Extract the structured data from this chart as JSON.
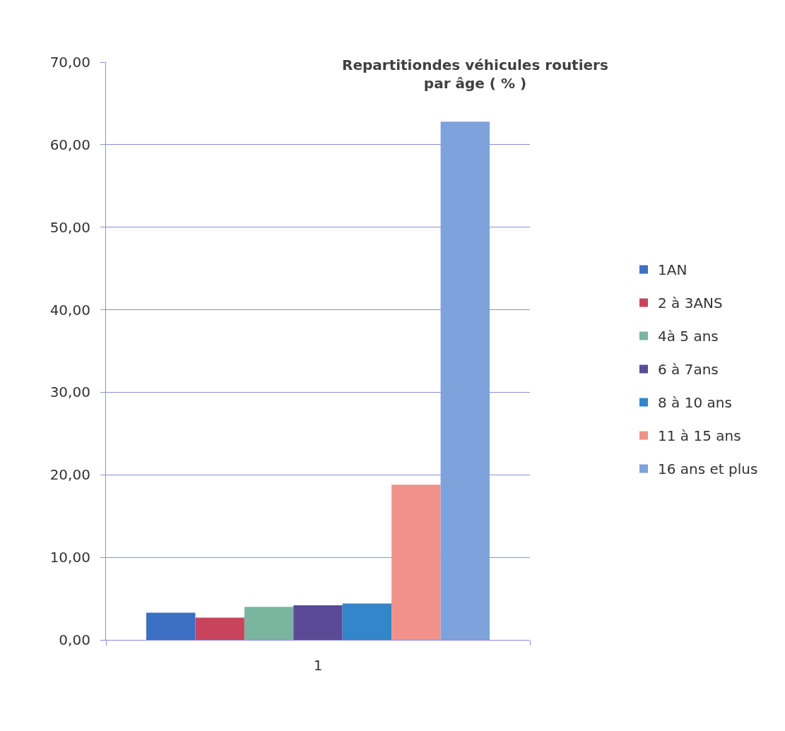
{
  "chart_data": {
    "type": "bar",
    "title": "Repartitiondes véhicules routiers\npar âge ( % )",
    "categories": [
      "1"
    ],
    "series": [
      {
        "name": "1AN",
        "color": "#3d6fc4",
        "values": [
          3.3
        ]
      },
      {
        "name": "2 à 3ANS",
        "color": "#c9435c",
        "values": [
          2.7
        ]
      },
      {
        "name": "4à 5 ans",
        "color": "#7ab5a0",
        "values": [
          4.0
        ]
      },
      {
        "name": "6 à 7ans",
        "color": "#5b4b97",
        "values": [
          4.2
        ]
      },
      {
        "name": "8 à 10 ans",
        "color": "#3386c9",
        "values": [
          4.4
        ]
      },
      {
        "name": "11 à 15 ans",
        "color": "#f0928a",
        "values": [
          18.8
        ]
      },
      {
        "name": "16 ans et plus",
        "color": "#7ea2dc",
        "values": [
          62.8
        ]
      }
    ],
    "ylim": [
      0,
      70
    ],
    "yticks": [
      {
        "value": 0,
        "label": "0,00"
      },
      {
        "value": 10,
        "label": "10,00"
      },
      {
        "value": 20,
        "label": "20,00"
      },
      {
        "value": 30,
        "label": "30,00"
      },
      {
        "value": 40,
        "label": "40,00"
      },
      {
        "value": 50,
        "label": "50,00"
      },
      {
        "value": 60,
        "label": "60,00"
      },
      {
        "value": 70,
        "label": "70,00"
      }
    ],
    "grid": "y",
    "legend": "right"
  }
}
